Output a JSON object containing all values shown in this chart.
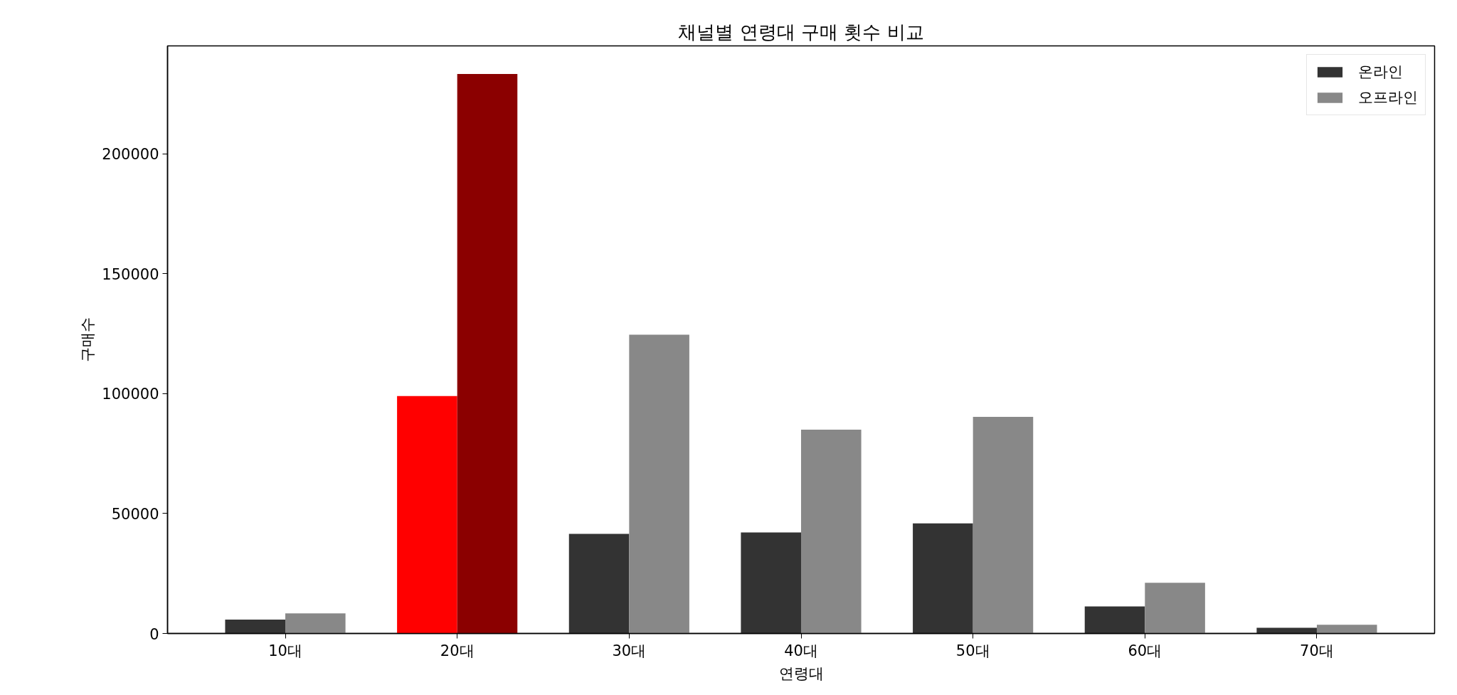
{
  "chart_data": {
    "type": "bar",
    "title": "채널별 연령대 구매 횟수 비교",
    "xlabel": "연령대",
    "ylabel": "구매수",
    "categories": [
      "10대",
      "20대",
      "30대",
      "40대",
      "50대",
      "60대",
      "70대"
    ],
    "series": [
      {
        "name": "온라인",
        "color": "#333333",
        "colors": [
          "#333333",
          "#ff0000",
          "#333333",
          "#333333",
          "#333333",
          "#333333",
          "#333333"
        ],
        "values": [
          5800,
          99000,
          41500,
          42100,
          45900,
          11300,
          2400
        ]
      },
      {
        "name": "오프라인",
        "color": "#888888",
        "colors": [
          "#888888",
          "#8b0000",
          "#888888",
          "#888888",
          "#888888",
          "#888888",
          "#888888"
        ],
        "values": [
          8400,
          233300,
          124600,
          85000,
          90300,
          21100,
          3600
        ]
      }
    ],
    "ylim": [
      0,
      245000
    ],
    "yticks": [
      0,
      50000,
      100000,
      150000,
      200000
    ],
    "grid": false,
    "legend": "top right"
  }
}
